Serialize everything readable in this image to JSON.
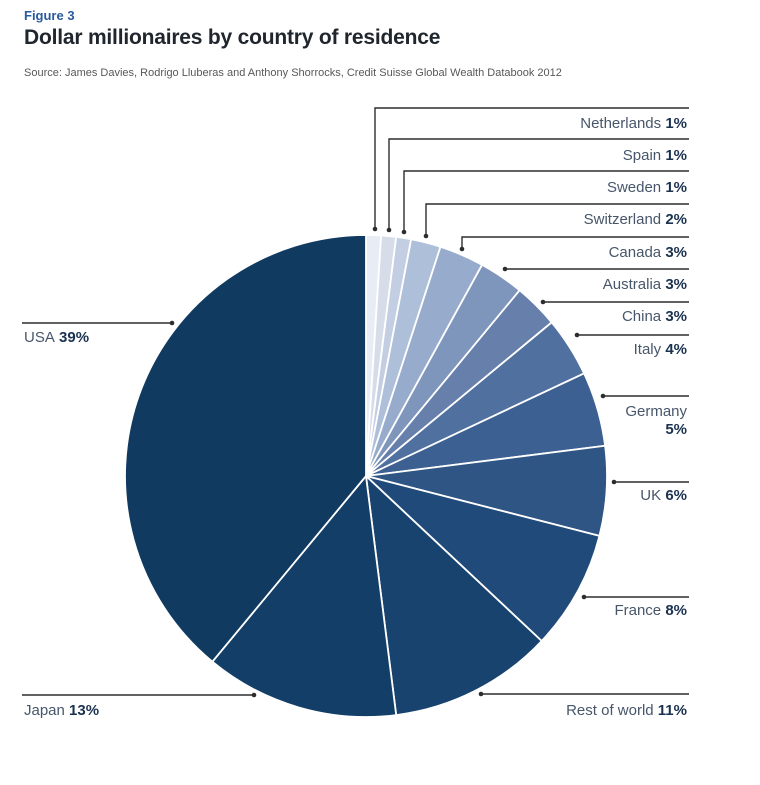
{
  "figure_label": "Figure 3",
  "title": "Dollar millionaires by country of residence",
  "source_line": "Source: James Davies, Rodrigo Lluberas and Anthony Shorrocks, Credit Suisse Global Wealth Databook 2012",
  "chart_data": {
    "type": "pie",
    "title": "Dollar millionaires by country of residence",
    "unit": "%",
    "start_angle_deg": 0,
    "direction": "clockwise",
    "slices": [
      {
        "label": "Netherlands",
        "value": 1,
        "display": "1%",
        "color": "#e8ecf4"
      },
      {
        "label": "Spain",
        "value": 1,
        "display": "1%",
        "color": "#d6dde9"
      },
      {
        "label": "Sweden",
        "value": 1,
        "display": "1%",
        "color": "#c3cee2"
      },
      {
        "label": "Switzerland",
        "value": 2,
        "display": "2%",
        "color": "#aebfd9"
      },
      {
        "label": "Canada",
        "value": 3,
        "display": "3%",
        "color": "#97abcc"
      },
      {
        "label": "Australia",
        "value": 3,
        "display": "3%",
        "color": "#7e95bc"
      },
      {
        "label": "China",
        "value": 3,
        "display": "3%",
        "color": "#667fab"
      },
      {
        "label": "Italy",
        "value": 4,
        "display": "4%",
        "color": "#50709f"
      },
      {
        "label": "Germany",
        "value": 5,
        "display": "5%",
        "color": "#3d6092"
      },
      {
        "label": "UK",
        "value": 6,
        "display": "6%",
        "color": "#2e5584"
      },
      {
        "label": "France",
        "value": 8,
        "display": "8%",
        "color": "#204a79"
      },
      {
        "label": "Rest of world",
        "value": 11,
        "display": "11%",
        "color": "#17436e"
      },
      {
        "label": "Japan",
        "value": 13,
        "display": "13%",
        "color": "#133e67"
      },
      {
        "label": "USA",
        "value": 39,
        "display": "39%",
        "color": "#113a60"
      }
    ],
    "style": {
      "label_color": "#47566a",
      "value_color": "#1b3250",
      "leader_line_color": "#2d2d2d",
      "slice_divider_color": "#ffffff"
    }
  }
}
